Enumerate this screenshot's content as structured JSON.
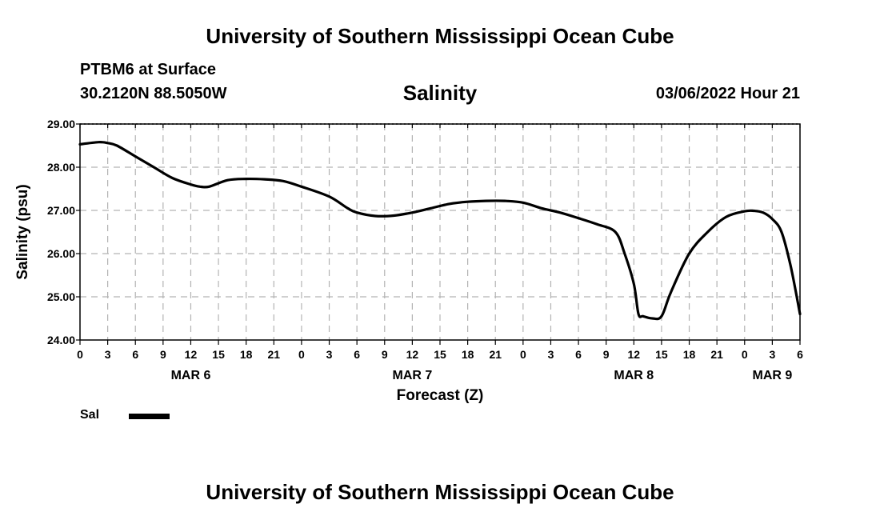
{
  "header": {
    "title_top": "University of Southern Mississippi Ocean Cube",
    "station": "PTBM6 at Surface",
    "coords": "30.2120N  88.5050W",
    "datetime": "03/06/2022 Hour 21",
    "title_bottom": "University of Southern Mississippi Ocean Cube"
  },
  "chart_data": {
    "type": "line",
    "title": "Salinity",
    "xlabel": "Forecast (Z)",
    "ylabel": "Salinity (psu)",
    "ylim": [
      24.0,
      29.0
    ],
    "yticks": [
      "24.00",
      "25.00",
      "26.00",
      "27.00",
      "28.00",
      "29.00"
    ],
    "xlim": [
      0,
      78
    ],
    "xtick_labels": [
      "0",
      "3",
      "6",
      "9",
      "12",
      "15",
      "18",
      "21",
      "0",
      "3",
      "6",
      "9",
      "12",
      "15",
      "18",
      "21",
      "0",
      "3",
      "6",
      "9",
      "12",
      "15",
      "18",
      "21",
      "0",
      "3",
      "6"
    ],
    "day_labels": [
      {
        "label": "MAR 6",
        "hour": 12
      },
      {
        "label": "MAR 7",
        "hour": 36
      },
      {
        "label": "MAR 8",
        "hour": 60
      },
      {
        "label": "MAR 9",
        "hour": 75
      }
    ],
    "grid": true,
    "legend": "bottom-left",
    "series": [
      {
        "name": "Sal",
        "color": "#000000",
        "x": [
          0,
          2,
          3,
          4,
          6,
          8,
          10,
          12,
          13,
          14,
          16,
          18,
          20,
          22,
          24,
          27,
          29,
          30,
          32,
          34,
          36,
          38,
          40,
          42,
          44,
          46,
          48,
          50,
          52,
          54,
          56,
          58,
          59,
          60,
          60.5,
          61,
          62,
          63,
          64,
          66,
          68,
          70,
          72,
          73,
          74,
          75,
          76,
          77,
          78
        ],
        "values": [
          28.53,
          28.58,
          28.56,
          28.5,
          28.25,
          28.0,
          27.75,
          27.6,
          27.55,
          27.55,
          27.7,
          27.73,
          27.72,
          27.68,
          27.55,
          27.32,
          27.05,
          26.95,
          26.87,
          26.88,
          26.95,
          27.05,
          27.15,
          27.2,
          27.22,
          27.22,
          27.18,
          27.05,
          26.95,
          26.82,
          26.68,
          26.5,
          26.0,
          25.3,
          24.6,
          24.55,
          24.5,
          24.55,
          25.1,
          26.0,
          26.5,
          26.85,
          26.98,
          26.99,
          26.95,
          26.8,
          26.5,
          25.7,
          24.6
        ]
      }
    ]
  }
}
